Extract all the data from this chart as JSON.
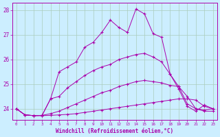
{
  "xlabel": "Windchill (Refroidissement éolien,°C)",
  "bg_color": "#cceeff",
  "grid_color": "#aaccbb",
  "line_color": "#aa00aa",
  "xlim": [
    -0.5,
    23.5
  ],
  "ylim": [
    23.55,
    28.3
  ],
  "yticks": [
    24,
    25,
    26,
    27,
    28
  ],
  "xticks": [
    0,
    1,
    2,
    3,
    4,
    5,
    6,
    7,
    8,
    9,
    10,
    11,
    12,
    13,
    14,
    15,
    16,
    17,
    18,
    19,
    20,
    21,
    22,
    23
  ],
  "lines": [
    [
      24.0,
      23.75,
      23.72,
      23.72,
      23.73,
      23.75,
      23.77,
      23.8,
      23.85,
      23.9,
      23.95,
      24.0,
      24.05,
      24.1,
      24.15,
      24.2,
      24.25,
      24.3,
      24.35,
      24.4,
      24.4,
      24.35,
      24.1,
      24.0
    ],
    [
      24.0,
      23.75,
      23.72,
      23.73,
      23.8,
      23.9,
      24.05,
      24.2,
      24.35,
      24.5,
      24.65,
      24.75,
      24.9,
      25.0,
      25.1,
      25.15,
      25.1,
      25.05,
      24.95,
      24.9,
      24.5,
      24.0,
      23.9,
      23.9
    ],
    [
      24.0,
      23.75,
      23.72,
      23.73,
      24.4,
      24.5,
      24.85,
      25.1,
      25.35,
      25.55,
      25.7,
      25.8,
      26.0,
      26.1,
      26.2,
      26.25,
      26.1,
      25.9,
      25.4,
      24.9,
      24.2,
      24.0,
      23.95,
      24.0
    ],
    [
      24.0,
      23.75,
      23.72,
      23.72,
      24.4,
      25.5,
      25.7,
      25.9,
      26.5,
      26.7,
      27.1,
      27.6,
      27.3,
      27.1,
      28.05,
      27.85,
      27.05,
      26.9,
      25.4,
      24.8,
      24.1,
      23.9,
      24.15,
      24.0
    ]
  ]
}
